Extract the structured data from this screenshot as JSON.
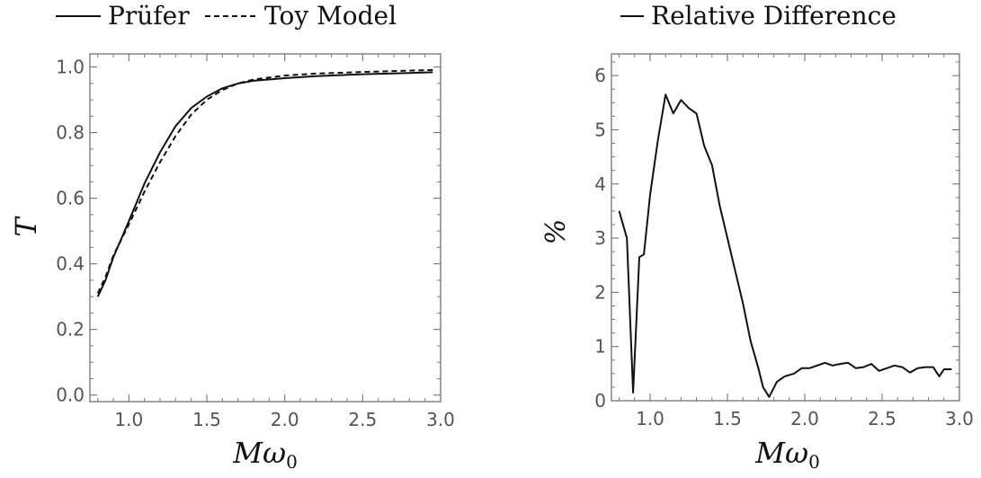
{
  "chart_data": [
    {
      "type": "line",
      "legend": {
        "placement": "top",
        "entries": [
          "Prüfer",
          "Toy Model"
        ]
      },
      "xlabel": "Mω",
      "xlabel_sub": "0",
      "ylabel": "T",
      "xlim": [
        0.75,
        3.0
      ],
      "ylim": [
        -0.02,
        1.04
      ],
      "xticks": [
        "1.0",
        "1.5",
        "2.0",
        "2.5",
        "3.0"
      ],
      "yticks": [
        "0.0",
        "0.2",
        "0.4",
        "0.6",
        "0.8",
        "1.0"
      ],
      "grid": false,
      "series": [
        {
          "name": "Prüfer",
          "style": "solid",
          "x": [
            0.8,
            0.85,
            0.9,
            1.0,
            1.1,
            1.2,
            1.3,
            1.4,
            1.5,
            1.6,
            1.7,
            1.8,
            2.0,
            2.2,
            2.5,
            2.8,
            2.95
          ],
          "y": [
            0.3,
            0.35,
            0.42,
            0.53,
            0.645,
            0.74,
            0.82,
            0.875,
            0.91,
            0.935,
            0.95,
            0.958,
            0.966,
            0.972,
            0.978,
            0.982,
            0.984
          ]
        },
        {
          "name": "Toy Model",
          "style": "dashed",
          "x": [
            0.8,
            0.85,
            0.9,
            1.0,
            1.1,
            1.2,
            1.3,
            1.4,
            1.5,
            1.6,
            1.7,
            1.8,
            2.0,
            2.2,
            2.5,
            2.8,
            2.95
          ],
          "y": [
            0.31,
            0.36,
            0.425,
            0.52,
            0.62,
            0.71,
            0.79,
            0.855,
            0.9,
            0.93,
            0.95,
            0.962,
            0.974,
            0.98,
            0.985,
            0.989,
            0.991
          ]
        }
      ]
    },
    {
      "type": "line",
      "legend": {
        "placement": "top",
        "entries": [
          "Relative Difference"
        ]
      },
      "xlabel": "Mω",
      "xlabel_sub": "0",
      "ylabel": "%",
      "xlim": [
        0.75,
        3.0
      ],
      "ylim": [
        0,
        6.4
      ],
      "xticks": [
        "1.0",
        "1.5",
        "2.0",
        "2.5",
        "3.0"
      ],
      "yticks": [
        "0",
        "1",
        "2",
        "3",
        "4",
        "5",
        "6"
      ],
      "grid": false,
      "series": [
        {
          "name": "Relative Difference",
          "style": "solid",
          "x": [
            0.8,
            0.85,
            0.89,
            0.93,
            0.96,
            1.0,
            1.05,
            1.1,
            1.15,
            1.2,
            1.25,
            1.3,
            1.35,
            1.4,
            1.45,
            1.5,
            1.55,
            1.6,
            1.65,
            1.7,
            1.73,
            1.77,
            1.82,
            1.87,
            1.93,
            1.98,
            2.03,
            2.08,
            2.13,
            2.18,
            2.23,
            2.28,
            2.33,
            2.38,
            2.43,
            2.48,
            2.53,
            2.58,
            2.63,
            2.68,
            2.73,
            2.78,
            2.83,
            2.87,
            2.9,
            2.95
          ],
          "y": [
            3.5,
            3.0,
            0.15,
            2.65,
            2.7,
            3.8,
            4.8,
            5.65,
            5.3,
            5.55,
            5.4,
            5.3,
            4.7,
            4.35,
            3.6,
            3.0,
            2.4,
            1.8,
            1.1,
            0.6,
            0.25,
            0.07,
            0.35,
            0.45,
            0.5,
            0.6,
            0.6,
            0.65,
            0.7,
            0.65,
            0.68,
            0.7,
            0.6,
            0.62,
            0.68,
            0.55,
            0.6,
            0.65,
            0.62,
            0.52,
            0.6,
            0.62,
            0.62,
            0.45,
            0.58,
            0.58
          ]
        }
      ]
    }
  ]
}
